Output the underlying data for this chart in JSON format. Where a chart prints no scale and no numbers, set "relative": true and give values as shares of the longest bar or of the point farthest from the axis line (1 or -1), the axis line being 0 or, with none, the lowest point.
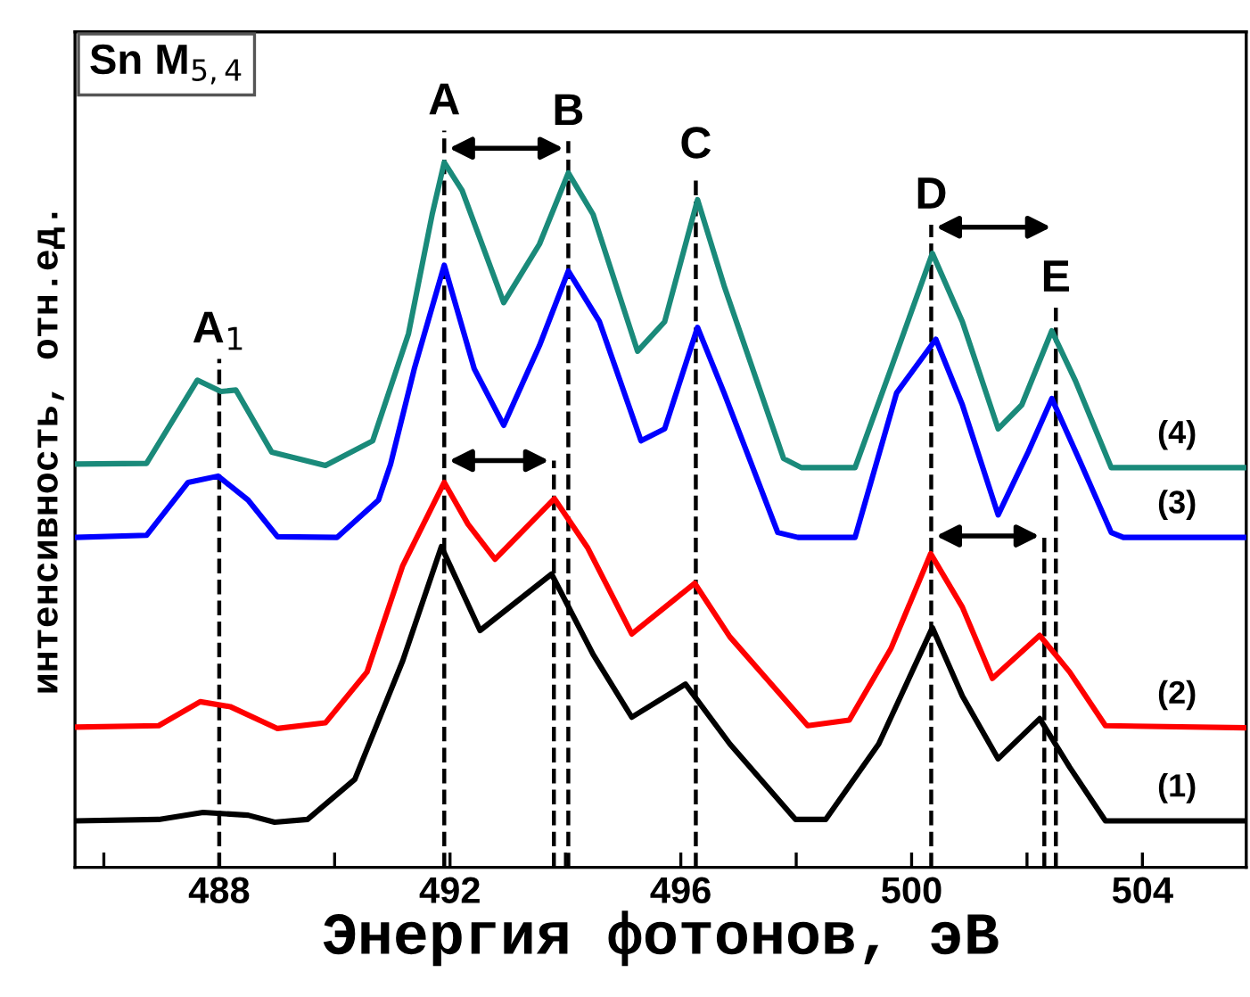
{
  "chart_data": {
    "type": "line",
    "relative": true,
    "xlabel": "Энергия фотонов, эВ",
    "ylabel": "интенсивность, отн.ед.",
    "annotations": [
      "Sn M$_{5,4}$"
    ],
    "xlim": [
      485.5,
      505.8
    ],
    "xticks": [
      {
        "value": 486,
        "label": null
      },
      488,
      {
        "value": 490,
        "label": null
      },
      492,
      {
        "value": 494,
        "label": null
      },
      496,
      {
        "value": 498,
        "label": null
      },
      500,
      {
        "value": 502,
        "label": null
      },
      504
    ],
    "tick_labels": "x",
    "grid": false,
    "marker": "none",
    "line_style": "solid",
    "series": [
      {
        "name": "(1)",
        "color": "#000000",
        "x": [
          485.5,
          486.95,
          487.72,
          488.5,
          488.96,
          489.53,
          490.35,
          491.18,
          491.85,
          492.52,
          493.76,
          494.48,
          495.15,
          496.08,
          496.85,
          497.99,
          498.51,
          499.43,
          500.36,
          500.88,
          501.5,
          502.22,
          502.74,
          503.36,
          505.8
        ],
        "values": [
          0.066,
          0.068,
          0.078,
          0.074,
          0.064,
          0.068,
          0.125,
          0.293,
          0.455,
          0.336,
          0.416,
          0.302,
          0.213,
          0.26,
          0.175,
          0.068,
          0.068,
          0.175,
          0.34,
          0.243,
          0.154,
          0.211,
          0.142,
          0.066,
          0.066
        ]
      },
      {
        "name": "(2)",
        "color": "#ff0000",
        "x": [
          485.5,
          486.95,
          487.67,
          488.19,
          489.01,
          489.84,
          490.56,
          491.18,
          491.9,
          492.31,
          492.78,
          493.81,
          494.38,
          495.15,
          496.24,
          496.85,
          498.2,
          498.92,
          499.64,
          500.33,
          500.88,
          501.4,
          502.22,
          502.74,
          503.36,
          505.8
        ],
        "values": [
          0.199,
          0.201,
          0.235,
          0.228,
          0.197,
          0.205,
          0.277,
          0.428,
          0.546,
          0.487,
          0.437,
          0.523,
          0.454,
          0.331,
          0.403,
          0.327,
          0.201,
          0.209,
          0.31,
          0.445,
          0.369,
          0.268,
          0.329,
          0.277,
          0.201,
          0.198
        ]
      },
      {
        "name": "(3)",
        "color": "#0000ff",
        "x": [
          485.5,
          486.74,
          487.46,
          487.98,
          488.5,
          489.01,
          490.04,
          490.76,
          490.97,
          491.38,
          491.9,
          492.42,
          492.93,
          493.55,
          494.05,
          494.59,
          495.31,
          495.72,
          496.29,
          496.75,
          497.68,
          498.03,
          499.02,
          499.74,
          500.42,
          500.88,
          501.5,
          502.02,
          502.43,
          502.94,
          503.46,
          503.67,
          505.8
        ],
        "values": [
          0.468,
          0.471,
          0.546,
          0.555,
          0.521,
          0.469,
          0.468,
          0.521,
          0.572,
          0.707,
          0.854,
          0.707,
          0.627,
          0.74,
          0.846,
          0.774,
          0.605,
          0.622,
          0.766,
          0.673,
          0.475,
          0.468,
          0.468,
          0.673,
          0.749,
          0.656,
          0.5,
          0.589,
          0.665,
          0.572,
          0.475,
          0.468,
          0.468
        ]
      },
      {
        "name": "(4)",
        "color": "#1a8a7a",
        "x": [
          485.5,
          486.74,
          487.62,
          488.03,
          488.29,
          488.91,
          489.84,
          490.66,
          491.28,
          491.69,
          491.9,
          492.21,
          492.93,
          493.55,
          494.05,
          494.48,
          495.25,
          495.72,
          496.29,
          496.75,
          497.78,
          498.09,
          499.02,
          499.64,
          500.36,
          500.88,
          501.5,
          501.91,
          502.43,
          502.84,
          503.46,
          505.8
        ],
        "values": [
          0.572,
          0.573,
          0.691,
          0.675,
          0.677,
          0.589,
          0.57,
          0.605,
          0.757,
          0.926,
          1.0,
          0.96,
          0.801,
          0.884,
          0.985,
          0.926,
          0.732,
          0.774,
          0.947,
          0.825,
          0.58,
          0.567,
          0.567,
          0.707,
          0.871,
          0.774,
          0.622,
          0.656,
          0.761,
          0.69,
          0.567,
          0.567
        ]
      }
    ],
    "ref_lines": [
      {
        "axis": "x",
        "value": 488.0,
        "label": "A$_{1}$",
        "line_style": "dashed",
        "color": "#000000"
      },
      {
        "axis": "x",
        "value": 491.9,
        "label": "A",
        "line_style": "dashed",
        "color": "#000000"
      },
      {
        "axis": "x",
        "value": 494.05,
        "label": "B",
        "line_style": "dashed",
        "color": "#000000"
      },
      {
        "axis": "x",
        "value": 493.8,
        "label": null,
        "line_style": "dashed",
        "color": "#000000"
      },
      {
        "axis": "x",
        "value": 496.26,
        "label": "C",
        "line_style": "dashed",
        "color": "#000000"
      },
      {
        "axis": "x",
        "value": 500.34,
        "label": "D",
        "line_style": "dashed",
        "color": "#000000"
      },
      {
        "axis": "x",
        "value": 502.5,
        "label": "E",
        "line_style": "dashed",
        "color": "#000000"
      },
      {
        "axis": "x",
        "value": 502.3,
        "label": null,
        "line_style": "dashed",
        "color": "#000000"
      }
    ]
  }
}
